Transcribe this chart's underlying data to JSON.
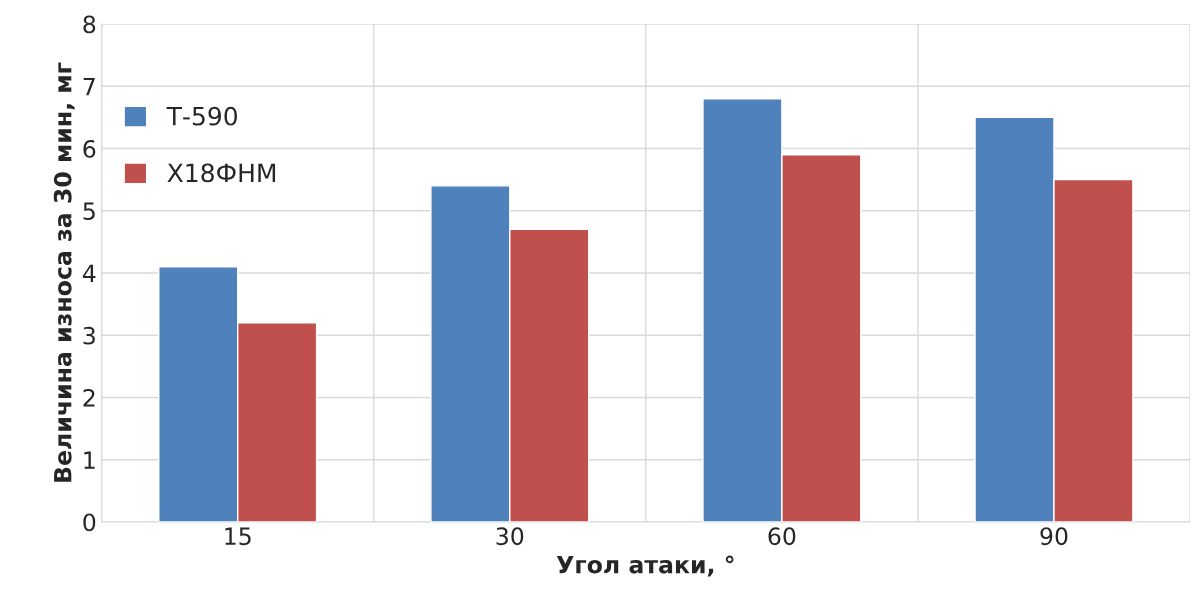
{
  "chart_data": {
    "type": "bar",
    "xlabel": "Угол атаки, °",
    "ylabel": "Величина износа за 30 мин, мг",
    "categories": [
      "15",
      "30",
      "60",
      "90"
    ],
    "series": [
      {
        "name": "Т-590",
        "color": "#4f81bd",
        "values": [
          4.1,
          5.4,
          6.8,
          6.5
        ]
      },
      {
        "name": "Х18ФНМ",
        "color": "#c0504d",
        "values": [
          3.2,
          4.7,
          5.9,
          5.5
        ]
      }
    ],
    "ylim": [
      0,
      8
    ],
    "yticks": [
      0,
      1,
      2,
      3,
      4,
      5,
      6,
      7,
      8
    ],
    "grid": true,
    "legend": "top left"
  }
}
